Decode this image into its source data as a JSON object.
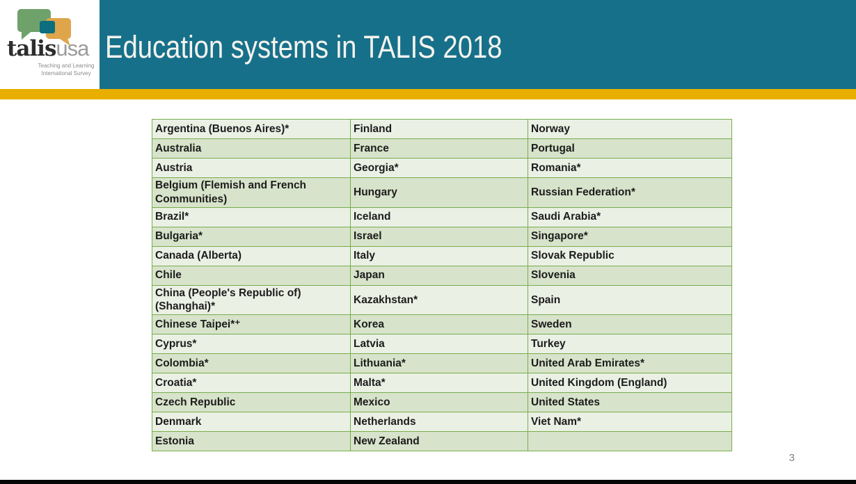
{
  "header": {
    "title": "Education systems in TALIS 2018"
  },
  "logo": {
    "brand_bold": "talis",
    "brand_light": "usa",
    "tagline_line1": "Teaching and Learning",
    "tagline_line2": "International Survey"
  },
  "table": {
    "columns": 3,
    "rows": [
      [
        "Argentina (Buenos Aires)*",
        "Finland",
        "Norway"
      ],
      [
        "Australia",
        "France",
        "Portugal"
      ],
      [
        "Austria",
        "Georgia*",
        "Romania*"
      ],
      [
        "Belgium (Flemish and French\nCommunities)",
        "Hungary",
        "Russian Federation*"
      ],
      [
        "Brazil*",
        "Iceland",
        "Saudi Arabia*"
      ],
      [
        "Bulgaria*",
        "Israel",
        "Singapore*"
      ],
      [
        "Canada (Alberta)",
        "Italy",
        "Slovak Republic"
      ],
      [
        "Chile",
        "Japan",
        "Slovenia"
      ],
      [
        "China (People's Republic of)\n(Shanghai)*",
        "Kazakhstan*",
        "Spain"
      ],
      [
        "Chinese Taipei*⁺",
        "Korea",
        "Sweden"
      ],
      [
        "Cyprus*",
        "Latvia",
        "Turkey"
      ],
      [
        "Colombia*",
        "Lithuania*",
        "United Arab Emirates*"
      ],
      [
        "Croatia*",
        "Malta*",
        "United Kingdom (England)"
      ],
      [
        "Czech Republic",
        "Mexico",
        "United States"
      ],
      [
        "Denmark",
        "Netherlands",
        "Viet Nam*"
      ],
      [
        "Estonia",
        "New Zealand",
        ""
      ]
    ]
  },
  "footer": {
    "page_number": "3"
  },
  "colors": {
    "header_teal": "#17708A",
    "accent_gold": "#E8AF00",
    "table_border_green": "#77AD4C",
    "row_light": "#EBF0E5",
    "row_dark": "#D7E3CA",
    "logo_green": "#6FA26B",
    "logo_gold": "#DFA54B",
    "logo_teal": "#0C6E7E",
    "footer_bar": "#060606"
  }
}
